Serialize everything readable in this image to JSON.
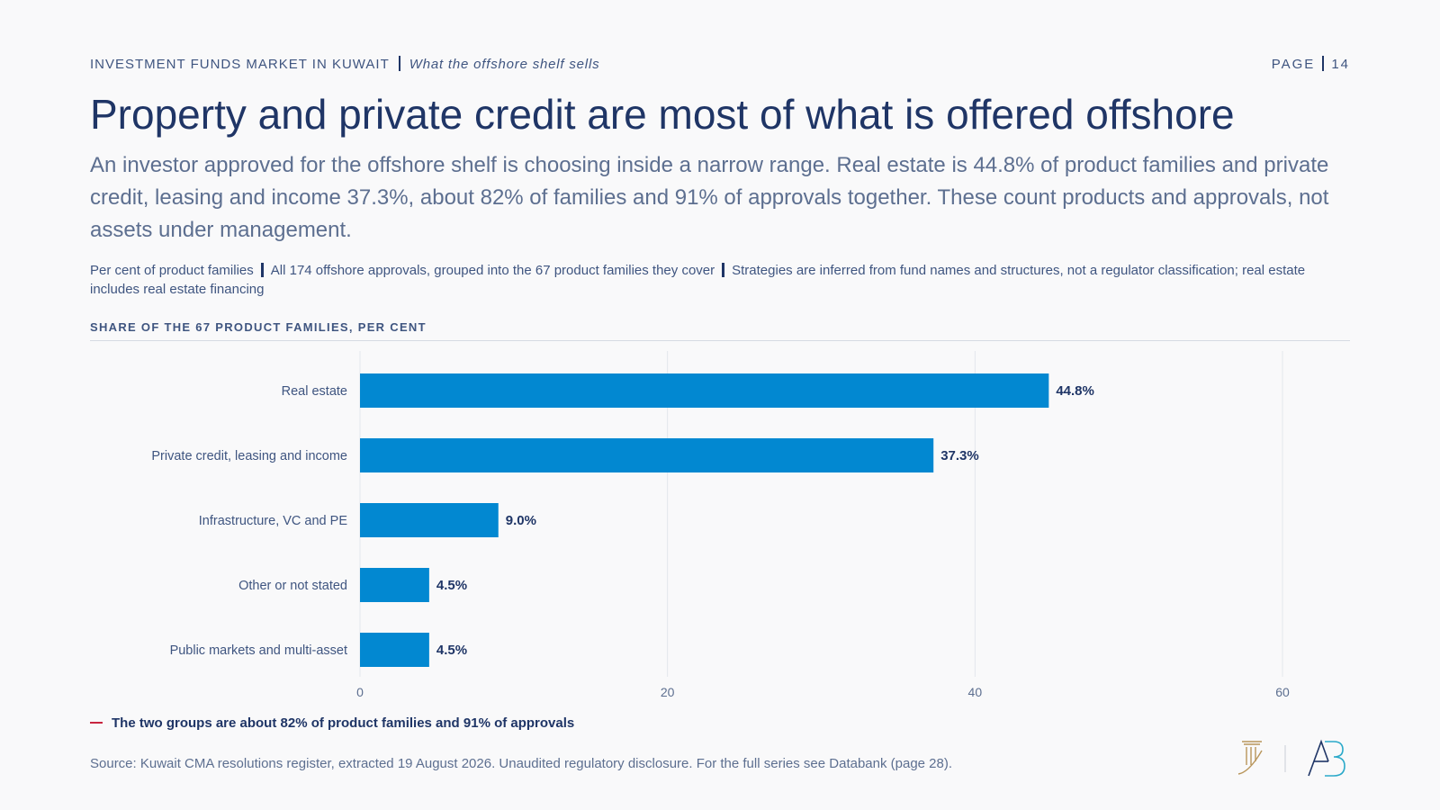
{
  "header": {
    "section": "INVESTMENT FUNDS MARKET IN KUWAIT",
    "subsection": "What the offshore shelf sells",
    "page_label": "PAGE",
    "page_number": "14"
  },
  "title": "Property and private credit are most of what is offered offshore",
  "subtitle": "An investor approved for the offshore shelf is choosing inside a narrow range. Real estate is 44.8% of product families and private credit, leasing and income 37.3%, about 82% of families and 91% of approvals together. These count products and approvals, not assets under management.",
  "notes": [
    "Per cent of product families",
    "All 174 offshore approvals, grouped into the 67 product families they cover",
    "Strategies are inferred from fund names and structures, not a regulator classification; real estate includes real estate financing"
  ],
  "chart_label": "SHARE OF THE 67 PRODUCT FAMILIES, PER CENT",
  "callout": "The two groups are about 82% of product families and 91% of approvals",
  "source": "Source: Kuwait CMA resolutions register, extracted 19 August 2026. Unaudited regulatory disclosure. For the full series see Databank (page 28).",
  "colors": {
    "bar": "#0288d1",
    "title": "#1f3566",
    "callout_accent": "#c8253f",
    "logo_gold": "#b8955a",
    "logo_navy": "#1f3566",
    "logo_teal": "#2aa9c9"
  },
  "icons": [
    "column-logo-icon",
    "ab-logo-icon"
  ],
  "chart_data": {
    "type": "bar",
    "orientation": "horizontal",
    "categories": [
      "Real estate",
      "Private credit, leasing and income",
      "Infrastructure, VC and PE",
      "Other or not stated",
      "Public markets and multi-asset"
    ],
    "values": [
      44.8,
      37.3,
      9.0,
      4.5,
      4.5
    ],
    "value_labels": [
      "44.8%",
      "37.3%",
      "9.0%",
      "4.5%",
      "4.5%"
    ],
    "x_ticks": [
      0,
      20,
      40,
      60
    ],
    "xlim": [
      0,
      60
    ],
    "grid": "vertical",
    "legend": "none"
  }
}
